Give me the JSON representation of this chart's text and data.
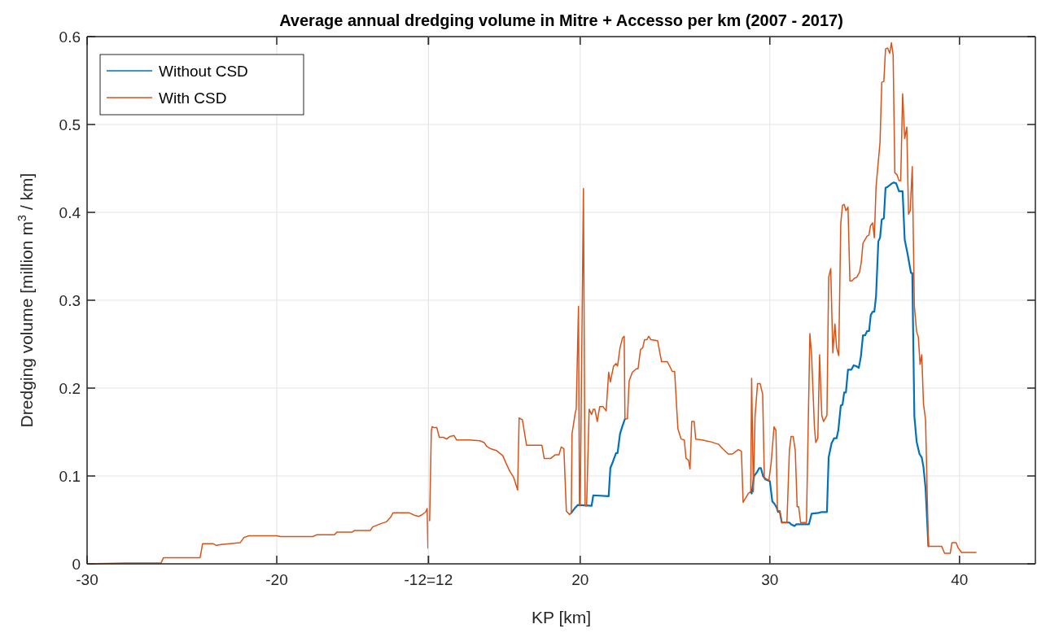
{
  "chart_data": [
    {
      "type": "line",
      "ylabel": "Dredging volume [million m$^{3}$ / km]",
      "xlim": [
        -30,
        -12
      ],
      "xticks": [
        -30,
        -20,
        {
          "value": -12,
          "label": null
        }
      ],
      "ylim": [
        0,
        0.6
      ],
      "yticks": [
        0,
        0.1,
        0.2,
        0.3,
        0.4,
        0.5,
        0.6
      ],
      "grid": true,
      "legend": "top left",
      "line_style": "solid",
      "marker": "none",
      "series": [
        {
          "name": "Without CSD",
          "color": "#0072bd"
        },
        {
          "name": "With CSD",
          "color": "#d95319",
          "x": [
            -30,
            -27.95,
            -26.1,
            -25.97,
            -24.04,
            -23.91,
            -23.36,
            -23.19,
            -22.93,
            -21.93,
            -21.73,
            -21.47,
            -20,
            -19.8,
            -18.1,
            -17.9,
            -16.96,
            -16.83,
            -16.02,
            -15.9,
            -15.07,
            -14.94,
            -14.6,
            -14.21,
            -14,
            -13.87,
            -13.01,
            -12.71,
            -12.5,
            -12.33,
            -12.15,
            -12.07,
            -12.03
          ],
          "values": [
            0,
            0.001,
            0.001,
            0.007,
            0.007,
            0.023,
            0.023,
            0.021,
            0.022,
            0.024,
            0.03,
            0.032,
            0.032,
            0.031,
            0.031,
            0.033,
            0.033,
            0.036,
            0.036,
            0.038,
            0.038,
            0.042,
            0.045,
            0.048,
            0.053,
            0.058,
            0.058,
            0.055,
            0.054,
            0.056,
            0.059,
            0.063,
            0.018
          ]
        }
      ]
    },
    {
      "type": "line",
      "title": "Average annual dredging volume in Mitre + Accesso per km (2007 - 2017)",
      "xlabel": "KP [km]",
      "xlim": [
        12,
        44
      ],
      "xticks": [
        {
          "value": 12,
          "label": "-12=12"
        },
        20,
        30,
        40
      ],
      "ylim": [
        0,
        0.6
      ],
      "yticks": [
        0,
        0.1,
        0.2,
        0.3,
        0.4,
        0.5,
        0.6
      ],
      "tick_labels": "x",
      "grid": true,
      "line_style": "solid",
      "marker": "none",
      "series": [
        {
          "color": "#0072bd",
          "x": [
            19.53,
            19.74,
            19.87,
            20.6,
            20.69,
            21.5,
            21.59,
            21.72,
            21.89,
            21.97,
            22.1,
            22.23,
            22.36,
            22.49,
            22.58,
            22.75,
            22.96,
            23.05,
            23.18,
            23.3,
            23.39,
            23.52,
            23.61,
            23.73,
            24.08,
            24.29,
            24.59,
            24.72,
            24.85,
            24.98,
            25.15,
            25.32,
            25.49,
            25.58,
            25.71,
            25.79,
            25.88,
            26.01,
            26.09,
            26.44,
            26.61,
            26.87,
            27.3,
            27.51,
            27.81,
            28.03,
            28.33,
            28.45,
            28.5,
            28.59,
            28.86,
            28.99,
            29.04,
            29.17,
            29.31,
            29.44,
            29.53,
            29.64,
            29.77,
            30,
            30.13,
            30.25,
            30.36,
            30.43,
            30.52,
            30.63,
            31.03,
            31.12,
            31.3,
            31.39,
            32.06,
            32.2,
            32.56,
            32.74,
            33.01,
            33.1,
            33.25,
            33.39,
            33.52,
            33.61,
            33.74,
            33.83,
            33.92,
            34.01,
            34.12,
            34.3,
            34.42,
            34.55,
            34.69,
            34.8,
            34.91,
            35.02,
            35.13,
            35.23,
            35.32,
            35.42,
            35.51,
            35.6,
            35.72,
            35.81,
            35.9,
            36.01,
            36.1,
            36.21,
            36.32,
            36.44,
            36.53,
            36.66,
            36.81,
            37,
            37.11,
            37.26,
            37.44,
            37.51,
            37.62,
            37.74,
            37.89,
            38.01,
            38.1,
            38.21,
            38.36
          ],
          "values": [
            0.058,
            0.064,
            0.067,
            0.066,
            0.078,
            0.077,
            0.109,
            0.116,
            0.126,
            0.126,
            0.148,
            0.157,
            0.165,
            null,
            null,
            null,
            null,
            null,
            null,
            null,
            null,
            null,
            null,
            null,
            null,
            null,
            null,
            null,
            null,
            null,
            null,
            null,
            null,
            null,
            null,
            null,
            null,
            null,
            null,
            null,
            null,
            null,
            null,
            null,
            null,
            null,
            null,
            null,
            null,
            null,
            null,
            0.082,
            0.08,
            0.1,
            0.104,
            0.109,
            0.109,
            0.1,
            0.096,
            0.094,
            0.071,
            0.068,
            0.064,
            0.059,
            0.06,
            0.047,
            0.047,
            0.045,
            0.043,
            0.045,
            0.045,
            0.057,
            0.058,
            0.059,
            0.059,
            0.121,
            0.137,
            0.143,
            0.143,
            0.152,
            0.18,
            0.181,
            0.195,
            0.195,
            0.221,
            0.221,
            0.226,
            0.225,
            0.223,
            0.236,
            0.26,
            0.26,
            0.265,
            0.265,
            0.283,
            0.287,
            0.287,
            0.305,
            0.367,
            0.371,
            0.392,
            0.393,
            0.428,
            0.429,
            0.431,
            0.433,
            0.434,
            0.433,
            0.424,
            0.424,
            0.369,
            0.353,
            0.331,
            0.331,
            0.168,
            0.139,
            0.125,
            0.121,
            0.11,
            0.086,
            0.02
          ]
        },
        {
          "color": "#d95319",
          "x": [
            12.06,
            12.15,
            12.19,
            12.3,
            12.44,
            12.57,
            12.79,
            12.96,
            13.13,
            13.35,
            13.48,
            14.16,
            14.72,
            14.94,
            15.06,
            15.28,
            15.58,
            15.92,
            16.1,
            16.3,
            16.5,
            16.7,
            16.78,
            16.95,
            17.17,
            17.98,
            18.1,
            18.45,
            18.67,
            18.88,
            19,
            19.14,
            19.27,
            19.44,
            19.53,
            19.57,
            19.74,
            19.79,
            19.91,
            19.96,
            20,
            20.17,
            20.26,
            20.34,
            20.47,
            20.6,
            20.69,
            20.77,
            20.9,
            21.03,
            21.2,
            21.37,
            21.5,
            21.59,
            21.76,
            21.89,
            21.97,
            22.1,
            22.23,
            22.32,
            22.36,
            22.49,
            22.58,
            22.75,
            22.96,
            23.05,
            23.18,
            23.3,
            23.39,
            23.52,
            23.61,
            23.73,
            24.08,
            24.29,
            24.59,
            24.72,
            24.85,
            24.98,
            25.15,
            25.32,
            25.49,
            25.58,
            25.71,
            25.79,
            25.88,
            26.01,
            26.09,
            26.44,
            26.61,
            26.87,
            27.3,
            27.51,
            27.81,
            28.03,
            28.33,
            28.45,
            28.5,
            28.59,
            28.86,
            28.99,
            29.04,
            29.13,
            29.22,
            29.35,
            29.49,
            29.62,
            29.71,
            29.95,
            30.07,
            30.22,
            30.32,
            30.4,
            30.52,
            30.63,
            30.9,
            31.03,
            31.12,
            31.23,
            31.34,
            31.44,
            31.52,
            31.62,
            31.93,
            32.11,
            32.2,
            32.35,
            32.42,
            32.53,
            32.62,
            32.74,
            32.83,
            33.01,
            33.1,
            33.21,
            33.32,
            33.43,
            33.52,
            33.63,
            33.74,
            33.83,
            33.92,
            34.01,
            34.12,
            34.22,
            34.33,
            34.46,
            34.58,
            34.73,
            34.82,
            34.91,
            35.02,
            35.13,
            35.22,
            35.31,
            35.42,
            35.51,
            35.6,
            35.81,
            35.9,
            36.01,
            36.1,
            36.21,
            36.32,
            36.41,
            36.5,
            36.59,
            36.7,
            36.81,
            36.9,
            37,
            37.11,
            37.22,
            37.31,
            37.4,
            37.51,
            37.62,
            37.74,
            37.83,
            37.92,
            38.01,
            38.1,
            38.21,
            38.36,
            39.06,
            39.21,
            39.51,
            39.6,
            39.82,
            39.93,
            40.11,
            40.87
          ],
          "values": [
            0.049,
            0.151,
            0.156,
            0.155,
            0.155,
            0.144,
            0.144,
            0.142,
            0.145,
            0.146,
            0.141,
            0.141,
            0.14,
            0.138,
            0.134,
            0.131,
            0.129,
            0.123,
            0.114,
            0.105,
            0.098,
            0.084,
            0.166,
            0.164,
            0.135,
            0.135,
            0.12,
            0.12,
            0.124,
            0.124,
            0.133,
            0.131,
            0.06,
            0.056,
            0.058,
            0.148,
            0.172,
            0.176,
            0.293,
            0.066,
            0.066,
            0.427,
            0.066,
            0.066,
            0.176,
            0.17,
            0.176,
            0.176,
            0.162,
            0.179,
            0.179,
            0.174,
            0.218,
            0.207,
            0.225,
            0.228,
            0.225,
            0.246,
            0.257,
            0.259,
            0.165,
            0.165,
            0.208,
            0.218,
            0.222,
            0.222,
            0.244,
            0.246,
            0.255,
            0.255,
            0.259,
            0.255,
            0.254,
            0.23,
            0.23,
            0.225,
            0.219,
            0.219,
            0.154,
            0.142,
            0.141,
            0.12,
            0.118,
            0.108,
            0.162,
            0.162,
            0.142,
            0.141,
            0.14,
            0.139,
            0.136,
            0.131,
            0.125,
            0.125,
            0.13,
            0.129,
            0.128,
            0.07,
            0.08,
            0.082,
            0.211,
            0.082,
            0.168,
            0.205,
            0.205,
            0.193,
            0.098,
            0.095,
            0.115,
            0.156,
            0.152,
            0.061,
            0.06,
            0.047,
            0.047,
            0.129,
            0.145,
            0.145,
            0.129,
            0.065,
            0.065,
            0.047,
            0.047,
            0.262,
            0.238,
            0.156,
            0.138,
            0.143,
            0.238,
            0.169,
            0.162,
            0.169,
            0.326,
            0.336,
            0.24,
            0.273,
            0.246,
            0.237,
            0.388,
            0.408,
            0.409,
            0.402,
            0.406,
            0.322,
            0.322,
            0.325,
            0.326,
            0.332,
            0.343,
            0.365,
            0.369,
            0.373,
            0.374,
            0.385,
            0.388,
            0.371,
            0.429,
            0.48,
            0.548,
            0.549,
            0.586,
            0.587,
            0.581,
            0.593,
            0.579,
            0.445,
            0.443,
            0.436,
            0.436,
            0.535,
            0.484,
            0.497,
            0.398,
            0.402,
            0.452,
            0.293,
            0.264,
            0.258,
            0.227,
            0.238,
            0.182,
            0.164,
            0.02,
            0.02,
            0.012,
            0.012,
            0.024,
            0.024,
            0.018,
            0.013,
            0.013
          ]
        }
      ]
    }
  ]
}
